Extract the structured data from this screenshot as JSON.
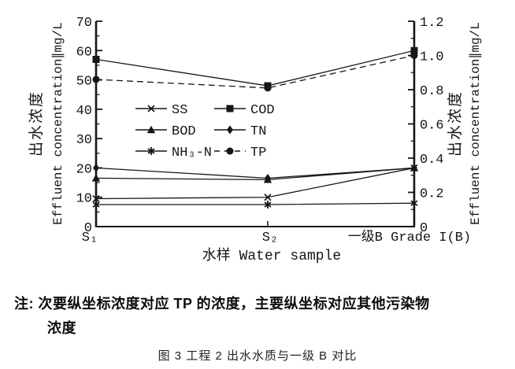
{
  "figure": {
    "note_line1": "注: 次要纵坐标浓度对应 TP 的浓度，主要纵坐标对应其他污染物",
    "note_line2": "浓度",
    "caption": "图 3 工程 2 出水水质与一级  B 对比"
  },
  "chart_data": {
    "type": "line",
    "categories": [
      "S₁",
      "S₂",
      "一级B Grade I(B)"
    ],
    "x_axis": {
      "title": "水样 Water sample"
    },
    "left_axis": {
      "title_zh": "出水浓度",
      "title_en": "Effluent concentration∥mg/L",
      "range": [
        0,
        70
      ],
      "major_ticks": [
        0,
        10,
        20,
        30,
        40,
        50,
        60,
        70
      ],
      "tick_labels": [
        "0",
        "10",
        "20",
        "30",
        "40",
        "50",
        "60",
        "70"
      ],
      "minor_step": 5
    },
    "right_axis": {
      "title_zh": "出水浓度",
      "title_en": "Effluent concentration∥mg/L",
      "range": [
        0,
        1.2
      ],
      "major_ticks": [
        0,
        0.2,
        0.4,
        0.6,
        0.8,
        1.0,
        1.2
      ],
      "tick_labels": [
        "0",
        "0.2",
        "0.4",
        "0.6",
        "0.8",
        "1.0",
        "1.2"
      ],
      "minor_step": 0.1
    },
    "series": [
      {
        "name": "SS",
        "axis": "left",
        "marker": "x",
        "line": "solid",
        "values": [
          9.5,
          10,
          20
        ]
      },
      {
        "name": "COD",
        "axis": "left",
        "marker": "square",
        "line": "solid",
        "values": [
          57,
          48,
          60
        ]
      },
      {
        "name": "BOD",
        "axis": "left",
        "marker": "triangle",
        "line": "solid",
        "values": [
          16.5,
          16,
          20
        ]
      },
      {
        "name": "TN",
        "axis": "left",
        "marker": "diamond",
        "line": "solid",
        "values": [
          20,
          16.5,
          20
        ]
      },
      {
        "name": "NH₃-N",
        "axis": "left",
        "marker": "star",
        "line": "solid",
        "values": [
          7.5,
          7.5,
          8
        ]
      },
      {
        "name": "TP",
        "axis": "right",
        "marker": "circle",
        "line": "dashed",
        "values": [
          0.86,
          0.81,
          1.0
        ]
      }
    ],
    "legend": {
      "columns": [
        [
          "SS",
          "BOD",
          "NH₃-N"
        ],
        [
          "COD",
          "TN",
          "TP"
        ]
      ],
      "position": "inside-upper-middle"
    },
    "ink_color": "#161616",
    "grid": "off"
  }
}
